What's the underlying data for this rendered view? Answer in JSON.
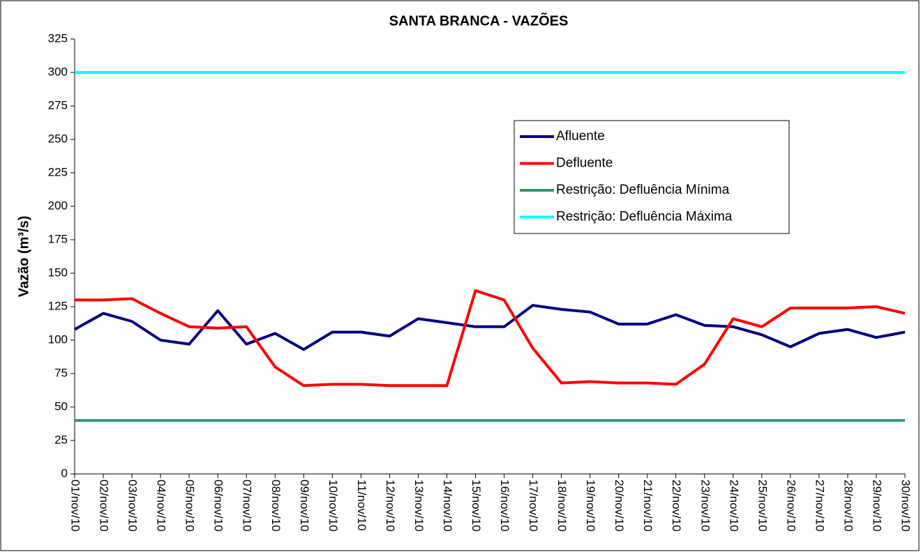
{
  "chart_data": {
    "type": "line",
    "title": "SANTA BRANCA - VAZÕES",
    "y_label": "Vazão (m³/s)",
    "categories": [
      "01/nov/10",
      "02/nov/10",
      "03/nov/10",
      "04/nov/10",
      "05/nov/10",
      "06/nov/10",
      "07/nov/10",
      "08/nov/10",
      "09/nov/10",
      "10/nov/10",
      "11/nov/10",
      "12/nov/10",
      "13/nov/10",
      "14/nov/10",
      "15/nov/10",
      "16/nov/10",
      "17/nov/10",
      "18/nov/10",
      "19/nov/10",
      "20/nov/10",
      "21/nov/10",
      "22/nov/10",
      "23/nov/10",
      "24/nov/10",
      "25/nov/10",
      "26/nov/10",
      "27/nov/10",
      "28/nov/10",
      "29/nov/10",
      "30/nov/10"
    ],
    "series": [
      {
        "name": "Afluente",
        "color": "#000080",
        "values": [
          108,
          120,
          114,
          100,
          97,
          122,
          97,
          105,
          93,
          106,
          106,
          103,
          116,
          113,
          110,
          110,
          126,
          123,
          121,
          112,
          112,
          119,
          111,
          110,
          104,
          95,
          105,
          108,
          102,
          106
        ]
      },
      {
        "name": "Defluente",
        "color": "#ff0000",
        "values": [
          130,
          130,
          131,
          120,
          110,
          109,
          110,
          80,
          66,
          67,
          67,
          66,
          66,
          66,
          137,
          130,
          94,
          68,
          69,
          68,
          68,
          67,
          82,
          116,
          110,
          124,
          124,
          124,
          125,
          120
        ]
      },
      {
        "name": "Restrição: Defluência Mínima",
        "color": "#339966",
        "values": [
          40,
          40,
          40,
          40,
          40,
          40,
          40,
          40,
          40,
          40,
          40,
          40,
          40,
          40,
          40,
          40,
          40,
          40,
          40,
          40,
          40,
          40,
          40,
          40,
          40,
          40,
          40,
          40,
          40,
          40
        ]
      },
      {
        "name": "Restrição: Defluência Máxima",
        "color": "#00ffff",
        "values": [
          300,
          300,
          300,
          300,
          300,
          300,
          300,
          300,
          300,
          300,
          300,
          300,
          300,
          300,
          300,
          300,
          300,
          300,
          300,
          300,
          300,
          300,
          300,
          300,
          300,
          300,
          300,
          300,
          300,
          300
        ]
      }
    ],
    "ylim": [
      0,
      325
    ],
    "yticks": [
      0,
      25,
      50,
      75,
      100,
      125,
      150,
      175,
      200,
      225,
      250,
      275,
      300,
      325
    ],
    "grid": false
  }
}
